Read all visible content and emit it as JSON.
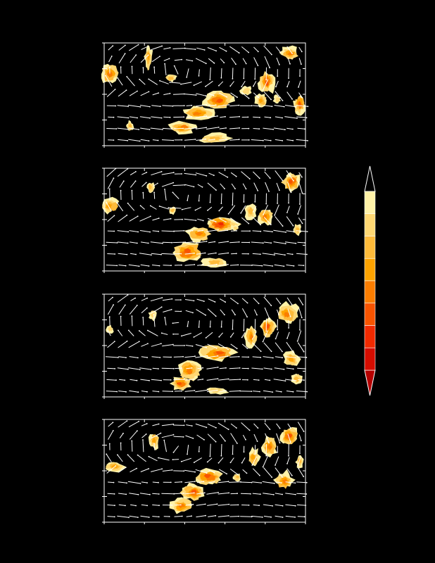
{
  "figure": {
    "background": "#000000",
    "frame_color": "#ffffff",
    "vector_color": "#ffffff"
  },
  "chart_data": [
    {
      "type": "heatmap",
      "overlay": "vector-field",
      "grid": false,
      "ticks": {
        "x": 5,
        "y": 4
      },
      "features": [
        {
          "cx": 0.03,
          "cy": 0.3,
          "rx": 0.05,
          "ry": 0.1,
          "level": 5
        },
        {
          "cx": 0.22,
          "cy": 0.15,
          "rx": 0.02,
          "ry": 0.12,
          "level": 4
        },
        {
          "cx": 0.33,
          "cy": 0.34,
          "rx": 0.03,
          "ry": 0.04,
          "level": 3
        },
        {
          "cx": 0.13,
          "cy": 0.81,
          "rx": 0.02,
          "ry": 0.05,
          "level": 3
        },
        {
          "cx": 0.57,
          "cy": 0.56,
          "rx": 0.08,
          "ry": 0.09,
          "level": 6
        },
        {
          "cx": 0.47,
          "cy": 0.69,
          "rx": 0.08,
          "ry": 0.07,
          "level": 5
        },
        {
          "cx": 0.39,
          "cy": 0.82,
          "rx": 0.07,
          "ry": 0.06,
          "level": 5
        },
        {
          "cx": 0.55,
          "cy": 0.93,
          "rx": 0.08,
          "ry": 0.05,
          "level": 3
        },
        {
          "cx": 0.71,
          "cy": 0.47,
          "rx": 0.03,
          "ry": 0.05,
          "level": 2
        },
        {
          "cx": 0.81,
          "cy": 0.38,
          "rx": 0.04,
          "ry": 0.11,
          "level": 6
        },
        {
          "cx": 0.78,
          "cy": 0.56,
          "rx": 0.03,
          "ry": 0.07,
          "level": 4
        },
        {
          "cx": 0.92,
          "cy": 0.1,
          "rx": 0.05,
          "ry": 0.06,
          "level": 5
        },
        {
          "cx": 0.97,
          "cy": 0.6,
          "rx": 0.03,
          "ry": 0.09,
          "level": 6
        },
        {
          "cx": 0.86,
          "cy": 0.55,
          "rx": 0.02,
          "ry": 0.04,
          "level": 2
        }
      ]
    },
    {
      "type": "heatmap",
      "overlay": "vector-field",
      "grid": false,
      "ticks": {
        "x": 5,
        "y": 4
      },
      "features": [
        {
          "cx": 0.03,
          "cy": 0.36,
          "rx": 0.05,
          "ry": 0.08,
          "level": 4
        },
        {
          "cx": 0.23,
          "cy": 0.19,
          "rx": 0.02,
          "ry": 0.06,
          "level": 3
        },
        {
          "cx": 0.34,
          "cy": 0.41,
          "rx": 0.02,
          "ry": 0.04,
          "level": 3
        },
        {
          "cx": 0.58,
          "cy": 0.55,
          "rx": 0.08,
          "ry": 0.08,
          "level": 7
        },
        {
          "cx": 0.47,
          "cy": 0.64,
          "rx": 0.06,
          "ry": 0.07,
          "level": 5
        },
        {
          "cx": 0.42,
          "cy": 0.82,
          "rx": 0.08,
          "ry": 0.1,
          "level": 6
        },
        {
          "cx": 0.55,
          "cy": 0.92,
          "rx": 0.07,
          "ry": 0.05,
          "level": 3
        },
        {
          "cx": 0.73,
          "cy": 0.43,
          "rx": 0.03,
          "ry": 0.08,
          "level": 3
        },
        {
          "cx": 0.8,
          "cy": 0.47,
          "rx": 0.04,
          "ry": 0.09,
          "level": 5
        },
        {
          "cx": 0.93,
          "cy": 0.14,
          "rx": 0.05,
          "ry": 0.09,
          "level": 6
        },
        {
          "cx": 0.96,
          "cy": 0.6,
          "rx": 0.02,
          "ry": 0.06,
          "level": 3
        },
        {
          "cx": 0.65,
          "cy": 0.58,
          "rx": 0.02,
          "ry": 0.03,
          "level": 2
        }
      ]
    },
    {
      "type": "heatmap",
      "overlay": "vector-field",
      "grid": false,
      "ticks": {
        "x": 5,
        "y": 4
      },
      "features": [
        {
          "cx": 0.03,
          "cy": 0.34,
          "rx": 0.02,
          "ry": 0.04,
          "level": 2
        },
        {
          "cx": 0.24,
          "cy": 0.2,
          "rx": 0.02,
          "ry": 0.05,
          "level": 2
        },
        {
          "cx": 0.56,
          "cy": 0.58,
          "rx": 0.09,
          "ry": 0.08,
          "level": 6
        },
        {
          "cx": 0.42,
          "cy": 0.74,
          "rx": 0.06,
          "ry": 0.1,
          "level": 5
        },
        {
          "cx": 0.38,
          "cy": 0.87,
          "rx": 0.05,
          "ry": 0.07,
          "level": 6
        },
        {
          "cx": 0.56,
          "cy": 0.94,
          "rx": 0.06,
          "ry": 0.04,
          "level": 2
        },
        {
          "cx": 0.73,
          "cy": 0.41,
          "rx": 0.03,
          "ry": 0.11,
          "level": 5
        },
        {
          "cx": 0.81,
          "cy": 0.32,
          "rx": 0.04,
          "ry": 0.1,
          "level": 6
        },
        {
          "cx": 0.91,
          "cy": 0.19,
          "rx": 0.05,
          "ry": 0.1,
          "level": 5
        },
        {
          "cx": 0.93,
          "cy": 0.63,
          "rx": 0.04,
          "ry": 0.08,
          "level": 4
        },
        {
          "cx": 0.96,
          "cy": 0.82,
          "rx": 0.03,
          "ry": 0.06,
          "level": 3
        }
      ]
    },
    {
      "type": "heatmap",
      "overlay": "vector-field",
      "grid": false,
      "ticks": {
        "x": 5,
        "y": 4
      },
      "features": [
        {
          "cx": 0.05,
          "cy": 0.46,
          "rx": 0.05,
          "ry": 0.05,
          "level": 4
        },
        {
          "cx": 0.25,
          "cy": 0.2,
          "rx": 0.03,
          "ry": 0.08,
          "level": 4
        },
        {
          "cx": 0.52,
          "cy": 0.56,
          "rx": 0.07,
          "ry": 0.08,
          "level": 6
        },
        {
          "cx": 0.44,
          "cy": 0.7,
          "rx": 0.06,
          "ry": 0.09,
          "level": 6
        },
        {
          "cx": 0.38,
          "cy": 0.84,
          "rx": 0.06,
          "ry": 0.08,
          "level": 5
        },
        {
          "cx": 0.66,
          "cy": 0.56,
          "rx": 0.02,
          "ry": 0.04,
          "level": 3
        },
        {
          "cx": 0.74,
          "cy": 0.37,
          "rx": 0.03,
          "ry": 0.09,
          "level": 4
        },
        {
          "cx": 0.82,
          "cy": 0.26,
          "rx": 0.04,
          "ry": 0.1,
          "level": 5
        },
        {
          "cx": 0.92,
          "cy": 0.16,
          "rx": 0.05,
          "ry": 0.09,
          "level": 6
        },
        {
          "cx": 0.9,
          "cy": 0.6,
          "rx": 0.05,
          "ry": 0.09,
          "level": 5
        },
        {
          "cx": 0.97,
          "cy": 0.41,
          "rx": 0.02,
          "ry": 0.06,
          "level": 3
        }
      ]
    }
  ],
  "colorbar": {
    "extend": "both",
    "under_color": "#b50000",
    "over_color": "#000000",
    "levels": [
      "#d40d00",
      "#f02a00",
      "#f85400",
      "#fb7d00",
      "#fda300",
      "#febb3a",
      "#ffd873",
      "#fff2a8"
    ]
  }
}
